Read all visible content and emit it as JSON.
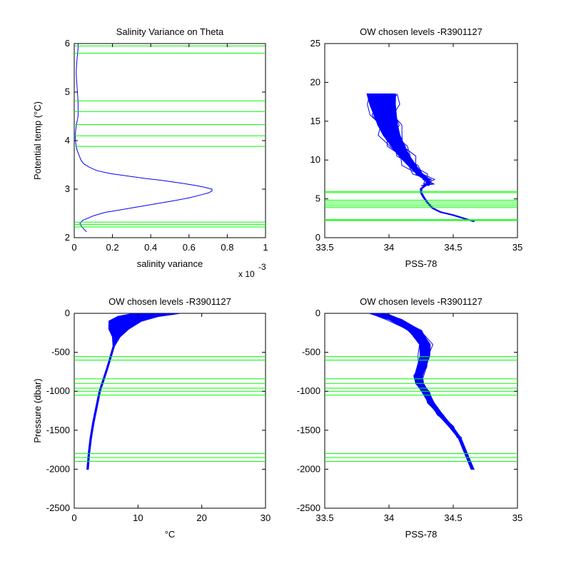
{
  "colors": {
    "profile": "#0000ff",
    "level": "#00ff00",
    "axis": "#000000"
  },
  "chart_data": [
    {
      "id": "salvar",
      "type": "line",
      "title": "Salinity Variance on Theta",
      "xlabel": "salinity variance",
      "ylabel": "Potential temp (°C)",
      "xlim": [
        0,
        1
      ],
      "ylim": [
        2,
        6
      ],
      "xticks": [
        "0",
        "0.2",
        "0.4",
        "0.6",
        "0.8",
        "1"
      ],
      "yticks": [
        "2",
        "3",
        "4",
        "5",
        "6"
      ],
      "x_exponent": {
        "base": "x 10",
        "power": "-3"
      },
      "levels": [
        2.22,
        2.27,
        2.32,
        3.88,
        4.1,
        4.33,
        4.6,
        4.82,
        5.8,
        5.95
      ],
      "series": [
        {
          "x": [
            0.065,
            0.05,
            0.035,
            0.03,
            0.045,
            0.07,
            0.1,
            0.16,
            0.25,
            0.34,
            0.43,
            0.52,
            0.6,
            0.66,
            0.7,
            0.72,
            0.72,
            0.68,
            0.63,
            0.55,
            0.46,
            0.37,
            0.28,
            0.19,
            0.12,
            0.08,
            0.05,
            0.035,
            0.025,
            0.015,
            0.008,
            0.005,
            0.01,
            0.02,
            0.02,
            0.015,
            0.01,
            0.015,
            0.02,
            0.02
          ],
          "y": [
            2.12,
            2.18,
            2.25,
            2.3,
            2.36,
            2.4,
            2.45,
            2.52,
            2.58,
            2.64,
            2.7,
            2.76,
            2.82,
            2.88,
            2.92,
            2.96,
            3.0,
            3.04,
            3.08,
            3.13,
            3.18,
            3.22,
            3.27,
            3.32,
            3.38,
            3.45,
            3.52,
            3.6,
            3.7,
            3.8,
            3.95,
            4.1,
            4.3,
            4.5,
            4.8,
            5.1,
            5.4,
            5.7,
            5.9,
            6.0
          ]
        }
      ]
    },
    {
      "id": "ts",
      "type": "line",
      "title": "OW chosen levels -R3901127",
      "xlabel": "PSS-78",
      "ylabel": "",
      "xlim": [
        33.5,
        35
      ],
      "ylim": [
        0,
        25
      ],
      "xticks": [
        "33.5",
        "34",
        "34.5",
        "35"
      ],
      "yticks": [
        "0",
        "5",
        "10",
        "15",
        "20",
        "25"
      ],
      "levels": [
        2.22,
        2.27,
        2.32,
        3.88,
        4.1,
        4.33,
        4.6,
        4.82,
        5.8,
        5.95
      ],
      "series": [
        {
          "x": [
            34.66,
            34.6,
            34.5,
            34.4,
            34.34,
            34.3,
            34.27,
            34.25,
            34.25,
            34.28,
            34.31,
            34.3,
            34.24,
            34.18,
            34.12,
            34.07,
            34.02,
            33.99,
            33.97,
            33.95,
            33.94
          ],
          "y": [
            2.1,
            2.4,
            2.9,
            3.3,
            3.8,
            4.5,
            5.2,
            5.8,
            6.3,
            6.7,
            6.9,
            7.5,
            8.2,
            9.3,
            10.5,
            11.8,
            13.2,
            14.5,
            15.8,
            17.2,
            18.5
          ]
        }
      ],
      "band": {
        "width_start": 0.01,
        "width_end": 0.22,
        "wiggle": 0.12,
        "y_start": 6.5
      }
    },
    {
      "id": "temp_pres",
      "type": "line",
      "title": "OW chosen levels -R3901127",
      "xlabel": "°C",
      "ylabel": "Pressure (dbar)",
      "xlim": [
        0,
        30
      ],
      "ylim": [
        -2500,
        0
      ],
      "xticks": [
        "0",
        "10",
        "20",
        "30"
      ],
      "yticks": [
        "-2500",
        "-2000",
        "-1500",
        "-1000",
        "-500",
        "0"
      ],
      "levels": [
        -555,
        -600,
        -840,
        -900,
        -960,
        -1000,
        -1050,
        -1800,
        -1850,
        -1900
      ],
      "series": [
        {
          "x": [
            2.1,
            2.3,
            2.6,
            3.0,
            3.5,
            4.0,
            4.6,
            5.2,
            5.7,
            6.2,
            6.6,
            7.0,
            8.0,
            10.0,
            13.0
          ],
          "y": [
            -2000,
            -1800,
            -1600,
            -1400,
            -1200,
            -1000,
            -850,
            -700,
            -560,
            -420,
            -300,
            -200,
            -100,
            -40,
            0
          ]
        }
      ],
      "band": {
        "width_start": 0.2,
        "width_end": 7.0,
        "wiggle": 1.0,
        "y_start": -350
      }
    },
    {
      "id": "sal_pres",
      "type": "line",
      "title": "OW chosen levels -R3901127",
      "xlabel": "PSS-78",
      "ylabel": "",
      "xlim": [
        33.5,
        35
      ],
      "ylim": [
        -2500,
        0
      ],
      "xticks": [
        "33.5",
        "34",
        "34.5",
        "35"
      ],
      "yticks": [
        "-2500",
        "-2000",
        "-1500",
        "-1000",
        "-500",
        "0"
      ],
      "levels": [
        -555,
        -600,
        -840,
        -900,
        -960,
        -1000,
        -1050,
        -1800,
        -1850,
        -1900
      ],
      "series": [
        {
          "x": [
            34.65,
            34.6,
            34.55,
            34.48,
            34.4,
            34.33,
            34.28,
            34.24,
            34.23,
            34.25,
            34.28,
            34.28,
            34.2,
            34.05,
            33.9
          ],
          "y": [
            -2000,
            -1800,
            -1600,
            -1450,
            -1300,
            -1150,
            -1000,
            -900,
            -800,
            -700,
            -550,
            -400,
            -220,
            -80,
            0
          ]
        }
      ],
      "band": {
        "width_start": 0.02,
        "width_end": 0.1,
        "wiggle": 0.06,
        "y_start": -1600
      }
    }
  ]
}
